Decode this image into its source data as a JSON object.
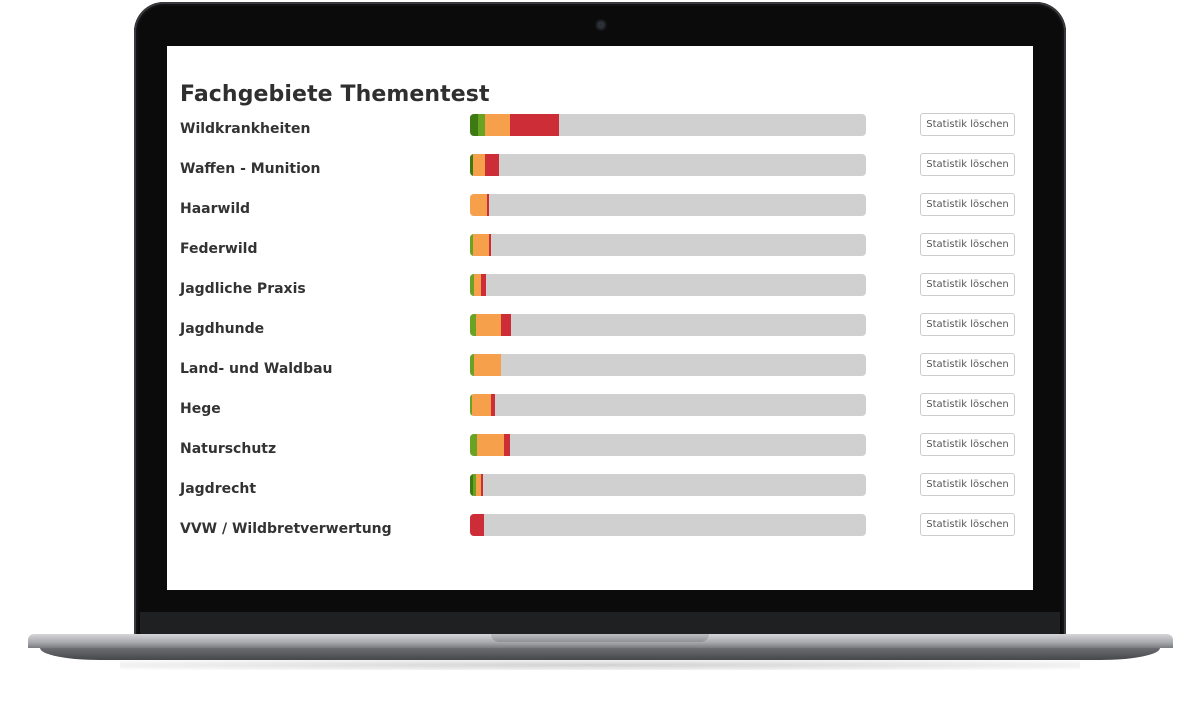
{
  "page": {
    "title": "Fachgebiete Thementest"
  },
  "colors": {
    "dark_green": "#3e7a12",
    "green": "#6aa324",
    "orange": "#f7a04c",
    "red": "#cc2d36",
    "track": "#d0d0d0"
  },
  "topics": [
    {
      "label": "Wildkrankheiten",
      "button": "Statistik löschen",
      "progress": {
        "dark_green": 0.02,
        "green": 0.018,
        "orange": 0.062,
        "red": 0.125
      }
    },
    {
      "label": "Waffen - Munition",
      "button": "Statistik löschen",
      "progress": {
        "dark_green": 0.008,
        "green": 0.0,
        "orange": 0.03,
        "red": 0.035
      }
    },
    {
      "label": "Haarwild",
      "button": "Statistik löschen",
      "progress": {
        "dark_green": 0.0,
        "green": 0.0,
        "orange": 0.043,
        "red": 0.004
      }
    },
    {
      "label": "Federwild",
      "button": "Statistik löschen",
      "progress": {
        "dark_green": 0.0,
        "green": 0.008,
        "orange": 0.04,
        "red": 0.004
      }
    },
    {
      "label": "Jagdliche Praxis",
      "button": "Statistik löschen",
      "progress": {
        "dark_green": 0.0,
        "green": 0.01,
        "orange": 0.018,
        "red": 0.012
      }
    },
    {
      "label": "Jagdhunde",
      "button": "Statistik löschen",
      "progress": {
        "dark_green": 0.0,
        "green": 0.015,
        "orange": 0.063,
        "red": 0.025
      }
    },
    {
      "label": "Land- und Waldbau",
      "button": "Statistik löschen",
      "progress": {
        "dark_green": 0.0,
        "green": 0.01,
        "orange": 0.068,
        "red": 0.0
      }
    },
    {
      "label": "Hege",
      "button": "Statistik löschen",
      "progress": {
        "dark_green": 0.0,
        "green": 0.004,
        "orange": 0.05,
        "red": 0.008
      }
    },
    {
      "label": "Naturschutz",
      "button": "Statistik löschen",
      "progress": {
        "dark_green": 0.0,
        "green": 0.017,
        "orange": 0.068,
        "red": 0.015
      }
    },
    {
      "label": "Jagdrecht",
      "button": "Statistik löschen",
      "progress": {
        "dark_green": 0.008,
        "green": 0.008,
        "orange": 0.012,
        "red": 0.004
      }
    },
    {
      "label": "VVW / Wildbretverwertung",
      "button": "Statistik löschen",
      "progress": {
        "dark_green": 0.0,
        "green": 0.0,
        "orange": 0.0,
        "red": 0.035
      }
    }
  ]
}
